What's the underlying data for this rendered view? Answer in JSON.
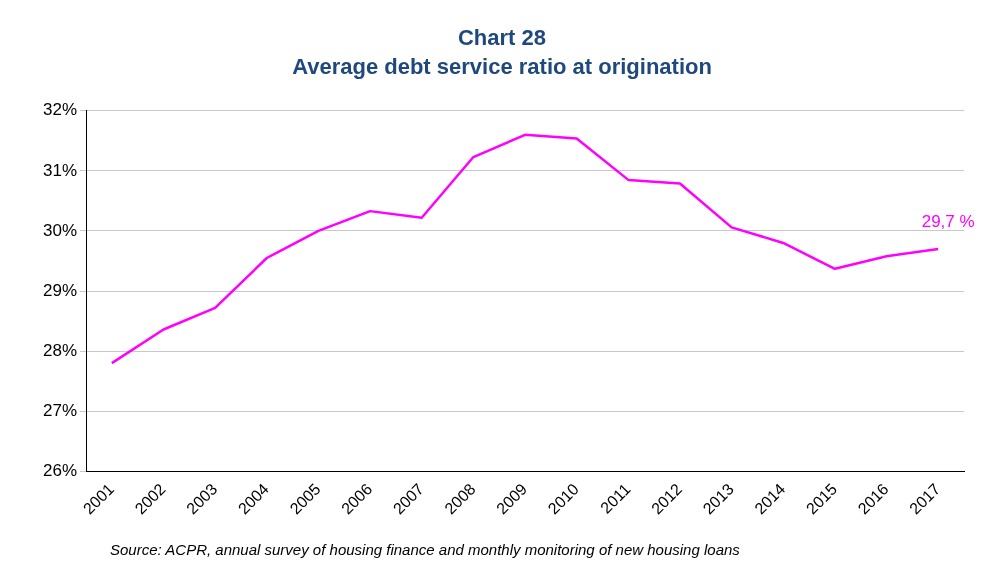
{
  "chart_data": {
    "type": "line",
    "title": "Chart 28",
    "subtitle": "Average debt service ratio at origination",
    "categories": [
      "2001",
      "2002",
      "2003",
      "2004",
      "2005",
      "2006",
      "2007",
      "2008",
      "2009",
      "2010",
      "2011",
      "2012",
      "2013",
      "2014",
      "2015",
      "2016",
      "2017"
    ],
    "series": [
      {
        "color": "#ff00ff",
        "values": [
          27.8,
          28.36,
          28.72,
          29.55,
          30.0,
          30.33,
          30.22,
          31.23,
          31.6,
          31.54,
          30.85,
          30.79,
          30.06,
          29.8,
          29.37,
          29.58,
          29.7
        ]
      }
    ],
    "ylim": [
      26,
      32
    ],
    "yticks": [
      {
        "value": 26,
        "label": "26%"
      },
      {
        "value": 27,
        "label": "27%"
      },
      {
        "value": 28,
        "label": "28%"
      },
      {
        "value": 29,
        "label": "29%"
      },
      {
        "value": 30,
        "label": "30%"
      },
      {
        "value": 31,
        "label": "31%"
      },
      {
        "value": 32,
        "label": "32%"
      }
    ],
    "grid": "y",
    "legend": false,
    "marker": "none",
    "line_style": "solid",
    "annotations": [
      {
        "text": "29,7 %",
        "x": "2017",
        "y": 29.7
      },
      "Source: ACPR, annual survey of housing finance and monthly monitoring of new housing loans"
    ]
  }
}
